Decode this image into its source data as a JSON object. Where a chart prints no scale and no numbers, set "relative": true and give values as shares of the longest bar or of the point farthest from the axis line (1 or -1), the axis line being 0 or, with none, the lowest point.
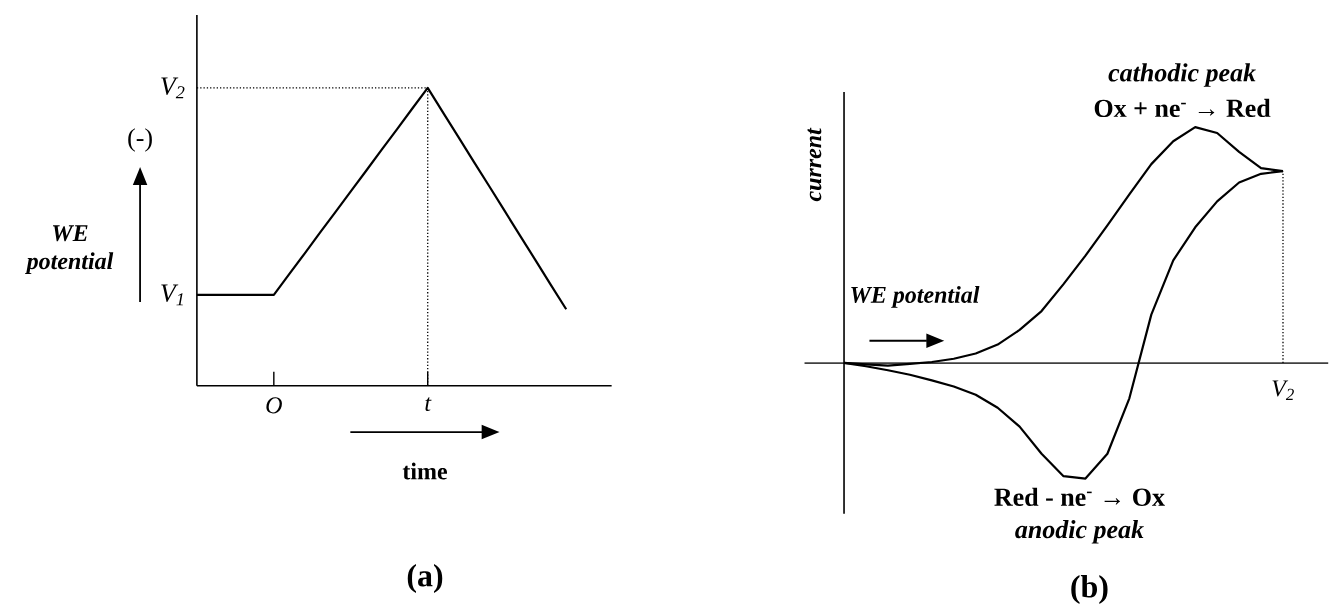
{
  "chart_data": [
    {
      "type": "line",
      "title": "(a)",
      "xlabel": "time",
      "ylabel": "WE potential",
      "relative": true,
      "annotations": [
        "(-)",
        "V$_{1}$",
        "V$_{2}$"
      ],
      "categories": [
        null,
        null,
        null,
        null,
        null,
        "O",
        null,
        null,
        null,
        null,
        null,
        null,
        null,
        null,
        null,
        "t",
        null,
        null,
        null,
        null,
        null,
        null,
        null,
        null,
        null
      ],
      "ref_lines": [
        {
          "axis": "x",
          "value": "t",
          "line_style": "dotted"
        }
      ],
      "series": [
        {
          "color": "#000000",
          "values": [
            0.305,
            0.305,
            0.305,
            0.305,
            0.305,
            0.305,
            0.375,
            0.444,
            0.514,
            0.583,
            0.653,
            0.722,
            0.792,
            0.861,
            0.931,
            1.0,
            0.917,
            0.835,
            0.752,
            0.67,
            0.587,
            0.504,
            0.422,
            0.339,
            0.257
          ]
        },
        {
          "color": "#000000",
          "line_style": "dotted",
          "values": [
            1.0,
            1.0,
            1.0,
            1.0,
            1.0,
            1.0,
            1.0,
            1.0,
            1.0,
            1.0,
            1.0,
            1.0,
            1.0,
            1.0,
            1.0,
            1.0,
            null,
            null,
            null,
            null,
            null,
            null,
            null,
            null,
            null
          ]
        }
      ]
    },
    {
      "type": "line",
      "title": "(b)",
      "xlabel": "WE potential",
      "ylabel": "current",
      "relative": true,
      "annotations": [
        "cathodic peak",
        "Ox + ne$^{-}$ → Red",
        "Red - ne$^{-}$ → Ox",
        "anodic peak",
        "V$_{2}$"
      ],
      "categories": [
        null,
        null,
        null,
        null,
        null,
        null,
        null,
        null,
        null,
        null,
        null,
        null,
        null,
        null,
        null,
        null,
        null,
        null,
        null,
        null,
        null
      ],
      "series": [
        {
          "color": "#000000",
          "values": [
            0,
            -0.006,
            -0.011,
            -0.004,
            0.004,
            0.018,
            0.04,
            0.078,
            0.14,
            0.22,
            0.334,
            0.455,
            0.583,
            0.715,
            0.843,
            0.94,
            1.0,
            0.975,
            0.895,
            0.826,
            0.813
          ]
        },
        {
          "color": "#000000",
          "values": [
            0,
            -0.014,
            -0.031,
            -0.05,
            -0.074,
            -0.1,
            -0.135,
            -0.19,
            -0.27,
            -0.385,
            -0.48,
            -0.49,
            -0.385,
            -0.15,
            0.205,
            0.435,
            0.575,
            0.685,
            0.765,
            0.802,
            0.813
          ]
        }
      ]
    }
  ]
}
